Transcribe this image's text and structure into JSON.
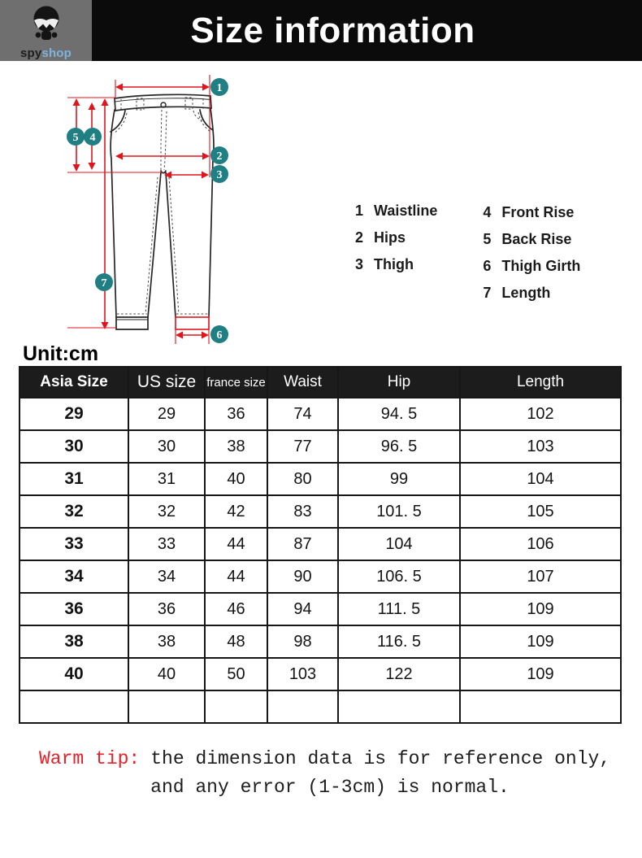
{
  "header": {
    "title": "Size information",
    "logo": {
      "icon": "spy-skull-icon",
      "brand_spy": "spy",
      "brand_shop": "shop"
    }
  },
  "diagram": {
    "badges": [
      "1",
      "2",
      "3",
      "4",
      "5",
      "6",
      "7"
    ],
    "legend": {
      "col1": [
        {
          "num": "1",
          "label": "Waistline"
        },
        {
          "num": "2",
          "label": "Hips"
        },
        {
          "num": "3",
          "label": "Thigh"
        }
      ],
      "col2": [
        {
          "num": "4",
          "label": "Front Rise"
        },
        {
          "num": "5",
          "label": "Back Rise"
        },
        {
          "num": "6",
          "label": "Thigh Girth"
        },
        {
          "num": "7",
          "label": "Length"
        }
      ]
    }
  },
  "unit_label": "Unit:cm",
  "table": {
    "headers": [
      "Asia Size",
      "US size",
      "france size",
      "Waist",
      "Hip",
      "Length"
    ],
    "rows": [
      [
        "29",
        "29",
        "36",
        "74",
        "94. 5",
        "102"
      ],
      [
        "30",
        "30",
        "38",
        "77",
        "96. 5",
        "103"
      ],
      [
        "31",
        "31",
        "40",
        "80",
        "99",
        "104"
      ],
      [
        "32",
        "32",
        "42",
        "83",
        "101. 5",
        "105"
      ],
      [
        "33",
        "33",
        "44",
        "87",
        "104",
        "106"
      ],
      [
        "34",
        "34",
        "44",
        "90",
        "106. 5",
        "107"
      ],
      [
        "36",
        "36",
        "46",
        "94",
        "111. 5",
        "109"
      ],
      [
        "38",
        "38",
        "48",
        "98",
        "116. 5",
        "109"
      ],
      [
        "40",
        "40",
        "50",
        "103",
        "122",
        "109"
      ],
      [
        "",
        "",
        "",
        "",
        "",
        ""
      ]
    ]
  },
  "warm_tip": {
    "label": "Warm tip:",
    "line1": "the dimension data is for reference only,",
    "line2": "and any error (1-3cm) is normal."
  },
  "colors": {
    "accent_red": "#e1141e",
    "badge_teal": "#1f7f82",
    "header_black": "#0b0b0b",
    "table_header_bg": "#1c1c1c",
    "brand_blue": "#7fb3dc",
    "logo_gray": "#6f6f6f",
    "warm_tip_red": "#e8202a"
  }
}
